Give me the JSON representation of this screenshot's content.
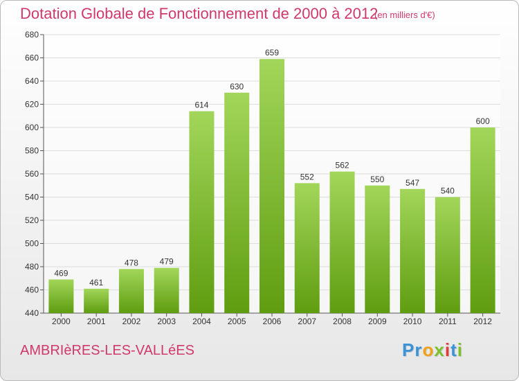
{
  "header": {
    "title": "Dotation Globale de Fonctionnement de 2000 à 2012",
    "unit": "(en milliers d'€)"
  },
  "footer": {
    "commune": "AMBRIèRES-LES-VALLéES",
    "logo_letters": [
      "P",
      "r",
      "o",
      "x",
      "i",
      "t",
      "i"
    ],
    "logo_colors": [
      "#3a93d6",
      "#3a93d6",
      "#f0a21b",
      "#7bbf2a",
      "#e23b3b",
      "#3a93d6",
      "#7bbf2a"
    ]
  },
  "colors": {
    "bar_top": "#a2d65a",
    "bar_bottom": "#5f9d10",
    "title": "#d0386c",
    "grid": "#dcdcdc"
  },
  "chart_data": {
    "type": "bar",
    "title": "Dotation Globale de Fonctionnement de 2000 à 2012",
    "subtitle": "(en milliers d'€)",
    "categories": [
      "2000",
      "2001",
      "2002",
      "2003",
      "2004",
      "2005",
      "2006",
      "2007",
      "2008",
      "2009",
      "2010",
      "2011",
      "2012"
    ],
    "values": [
      469,
      461,
      478,
      479,
      614,
      630,
      659,
      552,
      562,
      550,
      547,
      540,
      600
    ],
    "ylim": [
      440,
      680
    ],
    "yticks": [
      440,
      460,
      480,
      500,
      520,
      540,
      560,
      580,
      600,
      620,
      640,
      660,
      680
    ],
    "grid": true,
    "xlabel": "",
    "ylabel": ""
  }
}
